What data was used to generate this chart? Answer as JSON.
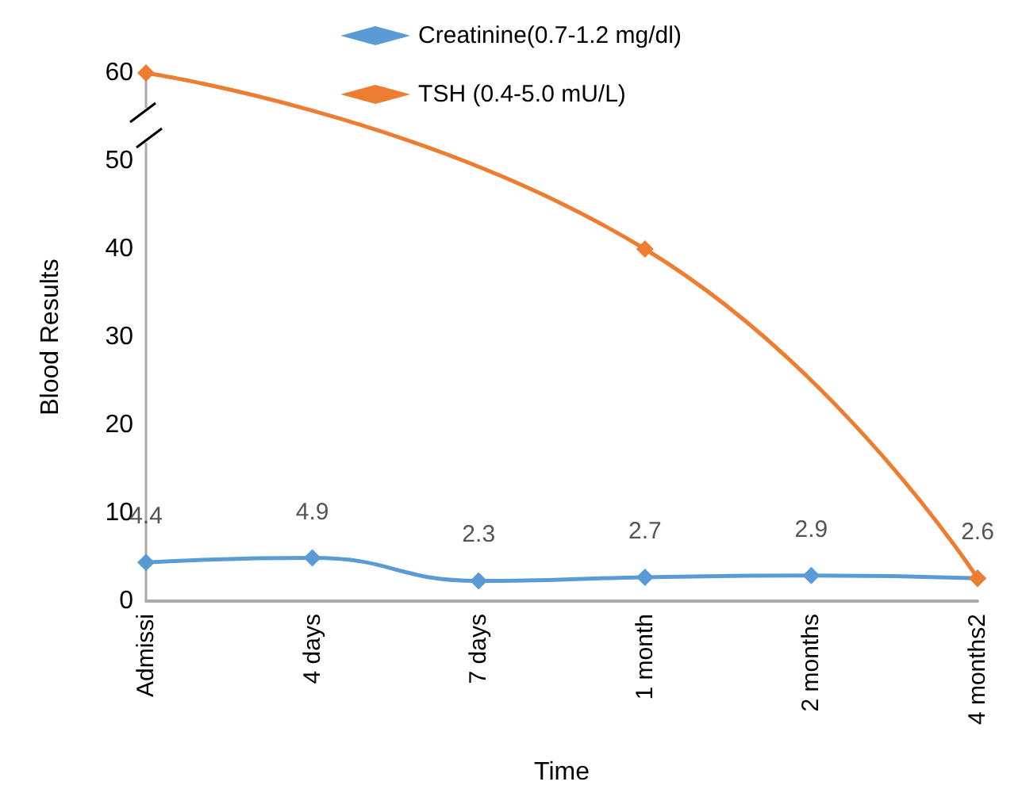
{
  "chart_data": {
    "type": "line",
    "xlabel": "Time",
    "ylabel": "Blood Results",
    "categories": [
      "Admissi",
      "4 days",
      "7 days",
      "1 month",
      "2 months",
      "4 months2"
    ],
    "series": [
      {
        "name": "Creatinine(0.7-1.2 mg/dl)",
        "color": "#5b9bd5",
        "values": [
          4.4,
          4.9,
          2.3,
          2.7,
          2.9,
          2.6
        ],
        "value_labels": [
          "4.4",
          "4.9",
          "2.3",
          "2.7",
          "2.9",
          "2.6"
        ]
      },
      {
        "name": "TSH (0.4-5.0 mU/L)",
        "color": "#ed7d31",
        "values": [
          60,
          null,
          null,
          40,
          null,
          2.6
        ]
      }
    ],
    "ylim": [
      0,
      60
    ],
    "yticks": [
      0,
      10,
      20,
      30,
      40,
      50,
      60
    ],
    "grid": false,
    "legend": "top",
    "marker": "diamond",
    "line_style": "solid"
  }
}
